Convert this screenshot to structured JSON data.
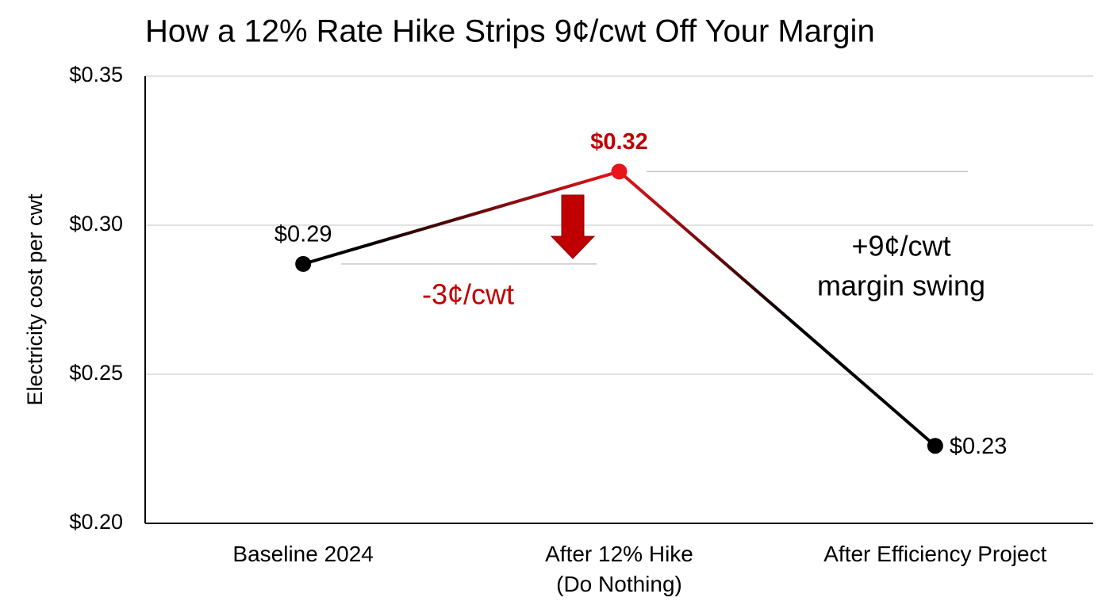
{
  "chart_data": {
    "type": "line",
    "title": "How a 12% Rate Hike Strips 9¢/cwt Off Your Margin",
    "y_label": "Electricity cost per cwt",
    "categories": [
      "Baseline 2024",
      "After 12% Hike\n(Do Nothing)",
      "After Efficiency Project"
    ],
    "values": [
      0.287,
      0.318,
      0.226
    ],
    "value_labels": [
      "$0.29",
      "$0.32",
      "$0.23"
    ],
    "color": "#000000",
    "highlight_color": "#e8141b",
    "ylim": [
      0.2,
      0.35
    ],
    "yticks": [
      {
        "value": 0.2,
        "label": "$0.20"
      },
      {
        "value": 0.25,
        "label": "$0.25"
      },
      {
        "value": 0.3,
        "label": "$0.30"
      },
      {
        "value": 0.35,
        "label": "$0.35"
      }
    ],
    "grid": true,
    "annotations": [
      "-3¢/cwt",
      "+9¢/cwt",
      "margin swing"
    ]
  }
}
